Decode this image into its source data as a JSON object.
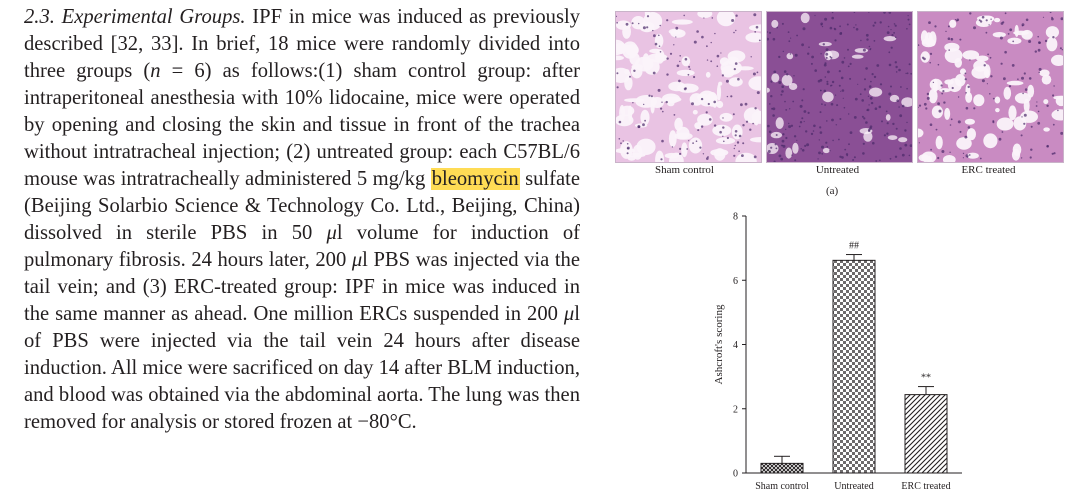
{
  "paper": {
    "section_number": "2.3.",
    "section_title": "Experimental Groups.",
    "t1": " IPF in mice was induced as previously described [32, 33]. In brief, 18 mice were randomly divided into three groups (",
    "n_var": "n",
    "t2": " = 6) as follows:(1) sham control group: after intraperitoneal anesthesia with 10% lidocaine, mice were operated by opening and closing the skin and tissue in front of the trachea without intratracheal injection; (2) untreated group: each C57BL/6 mouse was intratracheally administered 5 mg/kg ",
    "highlight": "bleomycin",
    "t3": " sulfate (Beijing Solarbio Science & Technology Co. Ltd., Beijing, China) dissolved in sterile PBS in 50 ",
    "mu1": "μ",
    "t4": "l volume for induction of pulmonary fibrosis. 24 hours later, 200 ",
    "mu2": "μ",
    "t5": "l PBS was injected via the tail vein; and (3) ERC-treated group: IPF in mice was induced in the same manner as ahead. One million ERCs suspended in 200 ",
    "mu3": "μ",
    "t6": "l of PBS were injected via the tail vein 24 hours after disease induction. All mice were sacrificed on day 14 after BLM induction, and blood was obtained via the abdominal aorta. The lung was then removed for analysis or stored frozen at −80°C."
  },
  "figure": {
    "micrographs": [
      {
        "caption": "Sham control",
        "stain": "#e9c3e3",
        "tissue": "light"
      },
      {
        "caption": "Untreated",
        "stain": "#8a4f95",
        "tissue": "dense"
      },
      {
        "caption": "ERC treated",
        "stain": "#c98bc2",
        "tissue": "medium"
      }
    ],
    "panel_a_label": "(a)",
    "colors": {
      "ink": "#231f20",
      "highlight": "#ffdc55"
    }
  },
  "chart_data": {
    "type": "bar",
    "categories": [
      "Sham control",
      "Untreated",
      "ERC treated"
    ],
    "values": [
      0.3,
      6.62,
      2.44
    ],
    "errors": [
      0.22,
      0.18,
      0.25
    ],
    "significance": [
      "",
      "##",
      "**"
    ],
    "patterns": [
      "crosshatch-dense",
      "checker",
      "diagonal"
    ],
    "ylabel": "Ashcroft's scoring",
    "ylim": [
      0,
      8
    ],
    "yticks": [
      0,
      2,
      4,
      6,
      8
    ],
    "grid": false
  }
}
